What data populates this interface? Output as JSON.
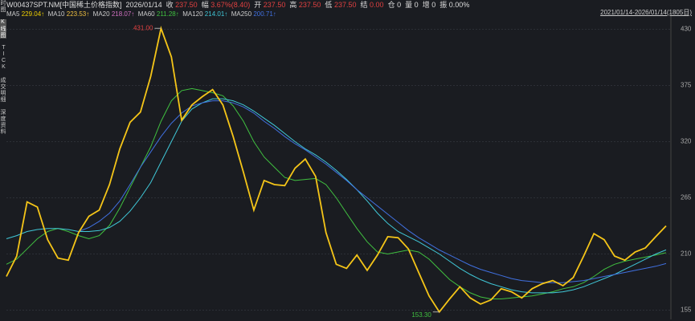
{
  "header": {
    "code": "W00437SPT.NM[中国稀土价格指数]",
    "date": "2026/01/14",
    "fields": [
      {
        "label": "收",
        "value": "237.50",
        "color": "#e04040"
      },
      {
        "label": "幅",
        "value": "3.67%(8.40)",
        "color": "#e04040"
      },
      {
        "label": "开",
        "value": "237.50",
        "color": "#e04040"
      },
      {
        "label": "高",
        "value": "237.50",
        "color": "#e04040"
      },
      {
        "label": "低",
        "value": "237.50",
        "color": "#e04040"
      },
      {
        "label": "结",
        "value": "0.00",
        "color": "#e04040"
      },
      {
        "label": "仓",
        "value": "0",
        "color": "#dddddd"
      },
      {
        "label": "量",
        "value": "0",
        "color": "#dddddd"
      },
      {
        "label": "增",
        "value": "0",
        "color": "#dddddd"
      },
      {
        "label": "振",
        "value": "0.00%",
        "color": "#dddddd"
      }
    ],
    "range": "2021/01/14-2026/01/14(1805日)"
  },
  "sidebar": {
    "tabs": [
      {
        "text": "时图",
        "selected": false
      },
      {
        "text": "K线图",
        "selected": true
      },
      {
        "text": "TICK",
        "selected": false
      },
      {
        "text": "成交明细",
        "selected": false
      },
      {
        "text": "深度资料",
        "selected": false
      }
    ]
  },
  "chart_data": {
    "type": "line",
    "ylim": [
      146,
      443
    ],
    "yticks": [
      155,
      210,
      265,
      320,
      375,
      430
    ],
    "grid": true,
    "legend": [
      {
        "name": "MA5",
        "label": "229.04↑",
        "color": "#f0d000"
      },
      {
        "name": "MA10",
        "label": "223.53↑",
        "color": "#f0c040"
      },
      {
        "name": "MA20",
        "label": "218.07↑",
        "color": "#d070c0"
      },
      {
        "name": "MA60",
        "label": "211.28↑",
        "color": "#40c040"
      },
      {
        "name": "MA120",
        "label": "214.01↑",
        "color": "#40c8d8"
      },
      {
        "name": "MA250",
        "label": "200.71↑",
        "color": "#4070e0"
      }
    ],
    "annotations": [
      {
        "label": "431.00",
        "color": "#e04040",
        "at": "max"
      },
      {
        "label": "153.30",
        "color": "#40c040",
        "at": "min"
      }
    ],
    "series": [
      {
        "name": "MA60",
        "color": "#40c040",
        "values": [
          200,
          205,
          215,
          225,
          232,
          235,
          232,
          228,
          225,
          228,
          238,
          255,
          275,
          295,
          315,
          340,
          360,
          370,
          372,
          370,
          368,
          365,
          355,
          340,
          320,
          305,
          295,
          285,
          282,
          283,
          284,
          278,
          265,
          250,
          235,
          222,
          212,
          210,
          212,
          214,
          212,
          205,
          195,
          185,
          178,
          172,
          168,
          166,
          166,
          167,
          168,
          169,
          171,
          173,
          176,
          178,
          182,
          188,
          195,
          200,
          203,
          205,
          207,
          209,
          211.28
        ]
      },
      {
        "name": "MA120",
        "color": "#40c8d8",
        "values": [
          225,
          228,
          232,
          234,
          235,
          235,
          234,
          232,
          232,
          233,
          236,
          242,
          252,
          265,
          280,
          300,
          320,
          340,
          352,
          358,
          362,
          362,
          360,
          356,
          350,
          343,
          336,
          328,
          320,
          313,
          307,
          300,
          292,
          283,
          273,
          262,
          250,
          240,
          232,
          227,
          222,
          216,
          210,
          203,
          196,
          190,
          185,
          181,
          178,
          175,
          173,
          172,
          172,
          172,
          173,
          175,
          178,
          182,
          186,
          190,
          195,
          200,
          205,
          210,
          214.01
        ]
      },
      {
        "name": "MA250",
        "color": "#4070e0",
        "values": [
          null,
          null,
          null,
          null,
          null,
          null,
          null,
          232,
          236,
          242,
          250,
          262,
          278,
          295,
          310,
          325,
          338,
          348,
          355,
          358,
          360,
          360,
          358,
          354,
          348,
          340,
          333,
          325,
          318,
          312,
          305,
          298,
          290,
          282,
          273,
          265,
          257,
          249,
          241,
          233,
          226,
          220,
          214,
          209,
          204,
          199,
          195,
          192,
          189,
          186,
          184,
          183,
          182,
          182,
          182,
          183,
          184,
          186,
          188,
          190,
          192,
          194,
          196,
          198,
          200.71
        ]
      },
      {
        "name": "价格",
        "color": "#f5c518",
        "values": [
          188,
          208,
          261,
          256,
          224,
          206,
          204,
          231,
          247,
          253,
          278,
          313,
          339,
          349,
          384,
          431,
          403,
          341,
          356,
          364,
          371,
          356,
          325,
          290,
          253,
          282,
          278,
          277,
          294,
          303,
          286,
          231,
          200,
          196,
          209,
          194,
          209,
          227,
          226,
          215,
          192,
          169,
          153.3,
          166,
          178,
          167,
          161,
          165,
          176,
          173,
          167,
          176,
          181,
          184,
          179,
          187,
          208,
          230,
          224,
          208,
          204,
          212,
          216,
          227,
          237.5
        ]
      }
    ]
  }
}
